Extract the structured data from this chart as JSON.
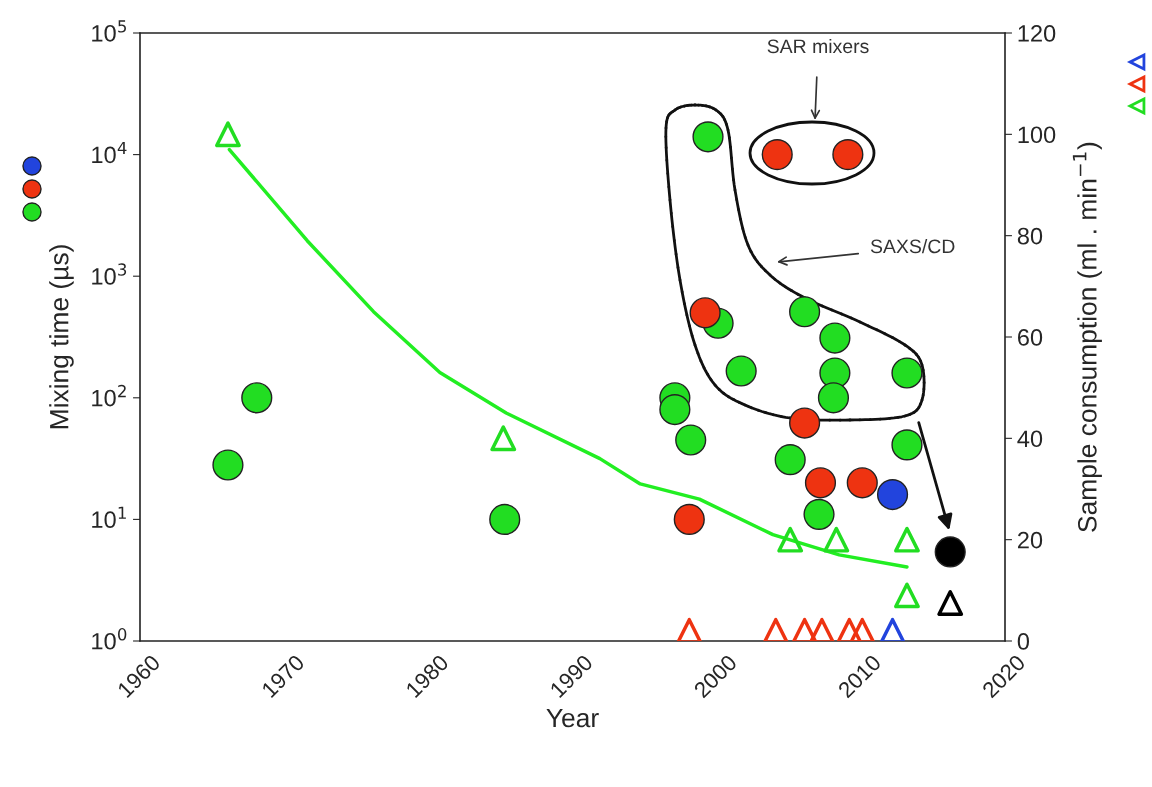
{
  "chart_data": {
    "type": "scatter",
    "xlabel": "Year",
    "ylabel": "Mixing time (µs)",
    "y2label": "Sample consumption (ml . min$^{−1}$)",
    "xlim": [
      1960,
      2020
    ],
    "xticks": [
      1960,
      1970,
      1980,
      1990,
      2000,
      2010,
      2020
    ],
    "log": "y",
    "ylim": [
      1,
      100000
    ],
    "yticks": [
      {
        "value": 1,
        "label": "10$^{0}$"
      },
      {
        "value": 10,
        "label": "10$^{1}$"
      },
      {
        "value": 100,
        "label": "10$^{2}$"
      },
      {
        "value": 1000,
        "label": "10$^{3}$"
      },
      {
        "value": 10000,
        "label": "10$^{4}$"
      },
      {
        "value": 100000,
        "label": "10$^{5}$"
      }
    ],
    "y2lim": [
      0,
      120
    ],
    "y2ticks": [
      0,
      20,
      40,
      60,
      80,
      100,
      120
    ],
    "grid": false,
    "legend": false,
    "annotations": [
      "SAR mixers",
      "SAXS/CD"
    ],
    "series": [
      {
        "marker": "circle",
        "color": "#22dd22",
        "x": [
          1966.1,
          1968.1,
          1985.3,
          1997.1,
          1997.1,
          1998.2,
          1999.4,
          2000.1,
          2001.7,
          2005.1,
          2006.1,
          2007.1,
          2008.2,
          2008.2,
          2008.1,
          2013.2,
          2013.2
        ],
        "values": [
          28,
          100,
          10,
          100,
          80,
          45,
          14000,
          410,
          166,
          31,
          510,
          11,
          310,
          160,
          100,
          160,
          41
        ]
      },
      {
        "marker": "circle",
        "color": "#ee3311",
        "x": [
          1998.1,
          1999.2,
          2004.2,
          2009.1,
          2006.1,
          2007.2,
          2010.1
        ],
        "values": [
          10,
          500,
          10000,
          10000,
          62,
          20,
          20
        ]
      },
      {
        "marker": "circle",
        "color": "#2244dd",
        "x": [
          2012.2
        ],
        "values": [
          16
        ]
      },
      {
        "marker": "circle",
        "color": "#000000",
        "x": [
          2016.2
        ],
        "values": [
          5.4
        ]
      },
      {
        "marker": "triangle",
        "axis": "y2",
        "color": "#22dd22",
        "x": [
          1966.1,
          1985.2,
          2005.1,
          2008.3,
          2013.2,
          2013.2
        ],
        "values": [
          100,
          40,
          20,
          20,
          20,
          9
        ]
      },
      {
        "marker": "triangle",
        "axis": "y2",
        "color": "#ee3311",
        "x": [
          1998.1,
          2004.1,
          2006.1,
          2007.3,
          2009.2,
          2010.1
        ],
        "values": [
          2,
          2,
          2,
          2,
          2,
          2
        ]
      },
      {
        "marker": "triangle",
        "axis": "y2",
        "color": "#2244dd",
        "x": [
          2012.2
        ],
        "values": [
          2
        ]
      },
      {
        "marker": "triangle",
        "axis": "y2",
        "color": "#000000",
        "x": [
          2016.2
        ],
        "values": [
          7.5
        ]
      },
      {
        "type": "line",
        "marker": "none",
        "axis": "y2",
        "color": "#22ee22",
        "x": [
          1966.2,
          1971.6,
          1976.2,
          1980.8,
          1985.4,
          1991.9,
          1994.7,
          1998.8,
          2003.9,
          2008.5,
          2013.2
        ],
        "values": [
          97,
          79,
          65,
          53,
          45,
          36,
          31,
          28,
          21,
          17,
          14.6
        ]
      }
    ]
  }
}
